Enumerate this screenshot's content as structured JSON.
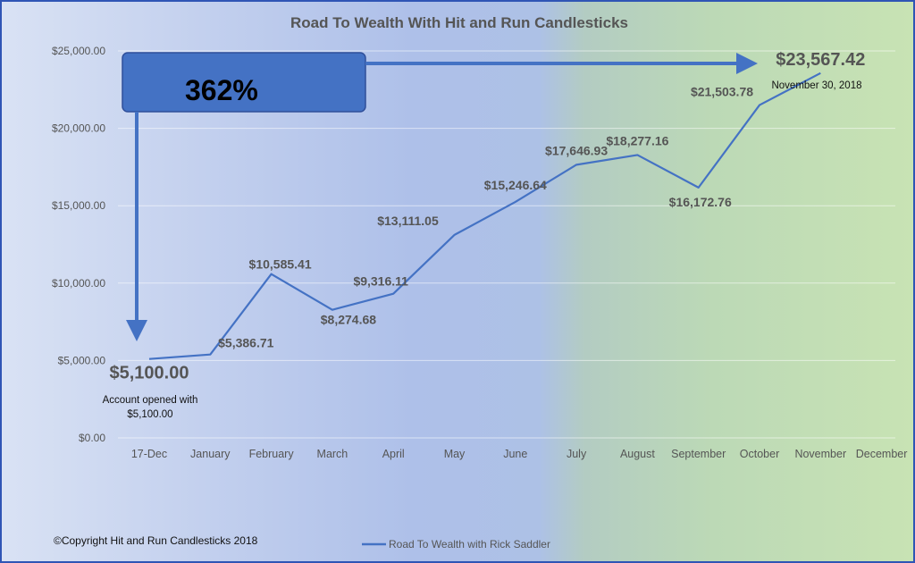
{
  "chart_data": {
    "type": "line",
    "title": "Road To Wealth With Hit and Run Candlesticks",
    "categories": [
      "17-Dec",
      "January",
      "February",
      "March",
      "April",
      "May",
      "June",
      "July",
      "August",
      "September",
      "October",
      "November",
      "December"
    ],
    "series": [
      {
        "name": "Road To Wealth with Rick Saddler",
        "color": "#4472c4",
        "values": [
          5100.0,
          5386.71,
          10585.41,
          8274.68,
          9316.11,
          13111.05,
          15246.64,
          17646.93,
          18277.16,
          16172.76,
          21503.78,
          23567.42,
          null
        ]
      }
    ],
    "data_labels": [
      "$5,100.00",
      "$5,386.71",
      "$10,585.41",
      "$8,274.68",
      "$9,316.11",
      "$13,111.05",
      "$15,246.64",
      "$17,646.93",
      "$18,277.16",
      "$16,172.76",
      "$21,503.78",
      "$23,567.42",
      ""
    ],
    "yticks": [
      "$0.00",
      "$5,000.00",
      "$10,000.00",
      "$15,000.00",
      "$20,000.00",
      "$25,000.00"
    ],
    "ylim": [
      0,
      25000
    ],
    "grid": true,
    "legend_position": "bottom"
  },
  "annotations": {
    "percent": "362%",
    "end_date": "November 30, 2018",
    "start_note_line1": "Account opened with",
    "start_note_line2": "$5,100.00"
  },
  "footer": {
    "copyright": "©Copyright Hit and Run Candlesticks 2018"
  }
}
